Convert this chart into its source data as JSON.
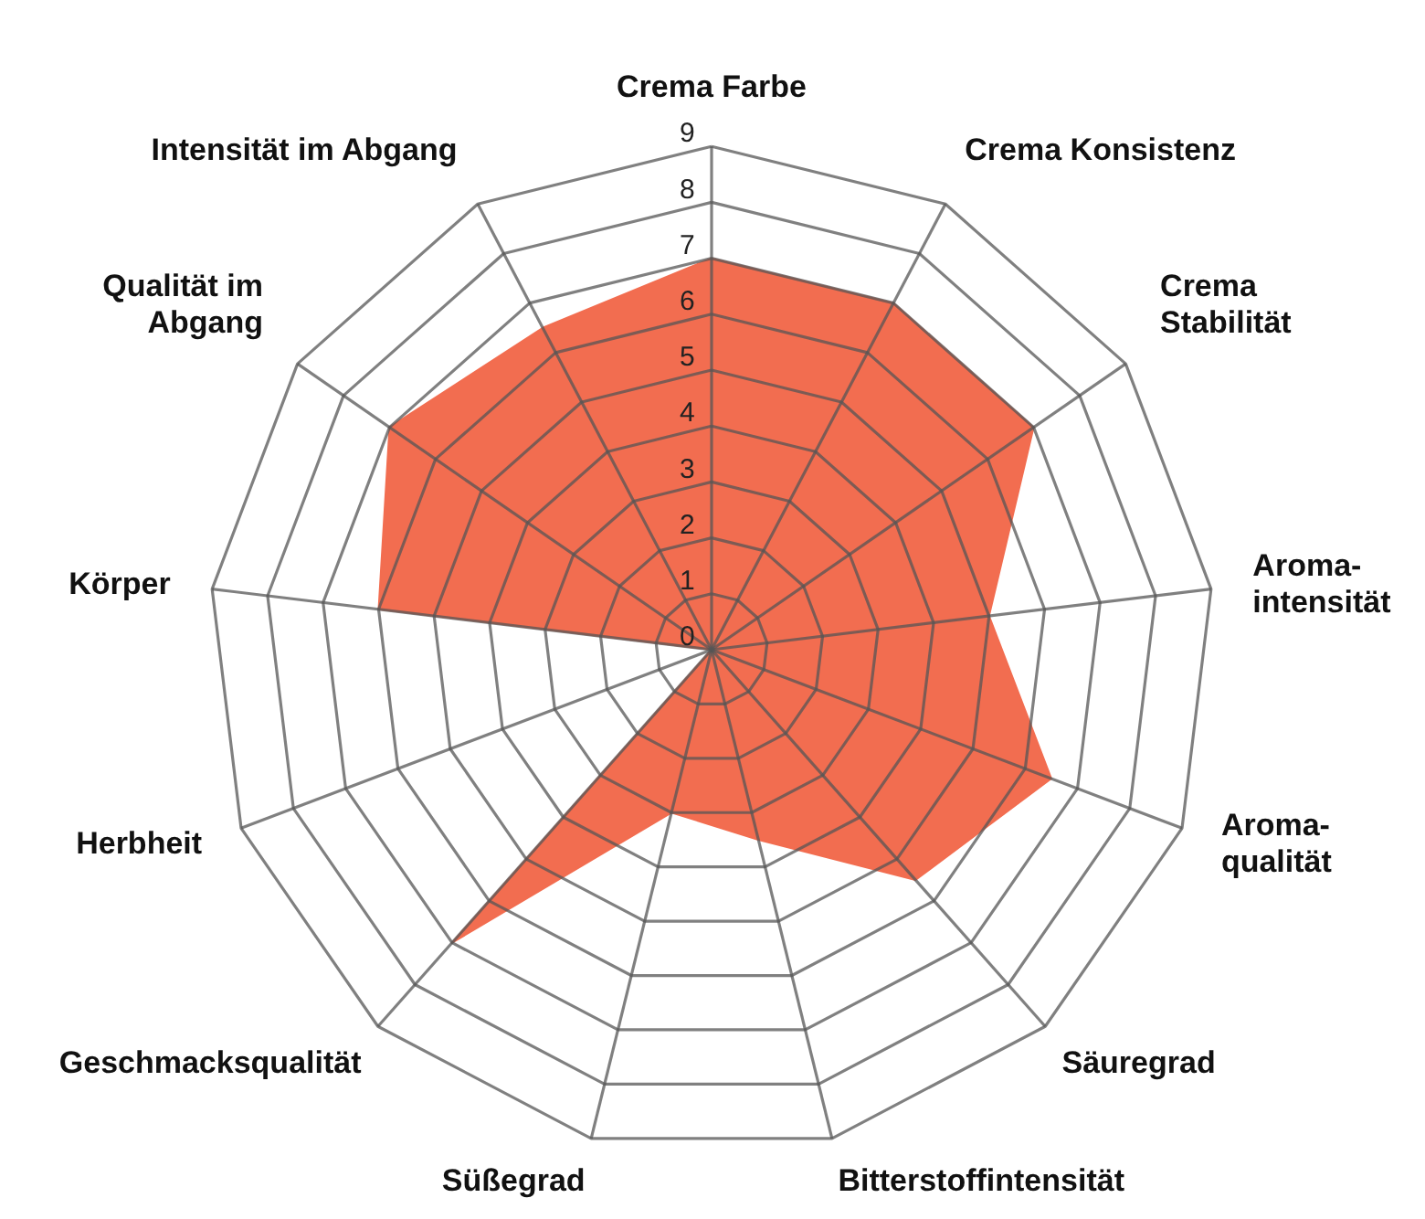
{
  "chart_data": {
    "type": "radar",
    "categories": [
      "Crema Farbe",
      "Crema Konsistenz",
      "Crema\nStabilität",
      "Aroma-\nintensität",
      "Aroma-\nqualität",
      "Säuregrad",
      "Bitterstoffintensität",
      "Süßegrad",
      "Geschmacksqualität",
      "Herbheit",
      "Körper",
      "Qualität im\nAbgang",
      "Intensität im Abgang"
    ],
    "series": [
      {
        "color": "#f26d50",
        "values": [
          7,
          7,
          7,
          5,
          6.5,
          5.5,
          3.5,
          3,
          7,
          0,
          6,
          7,
          6.5
        ]
      }
    ],
    "ylim": [
      0,
      9
    ],
    "yticks": [
      0,
      1,
      2,
      3,
      4,
      5,
      6,
      7,
      8,
      9
    ],
    "grid": true
  }
}
